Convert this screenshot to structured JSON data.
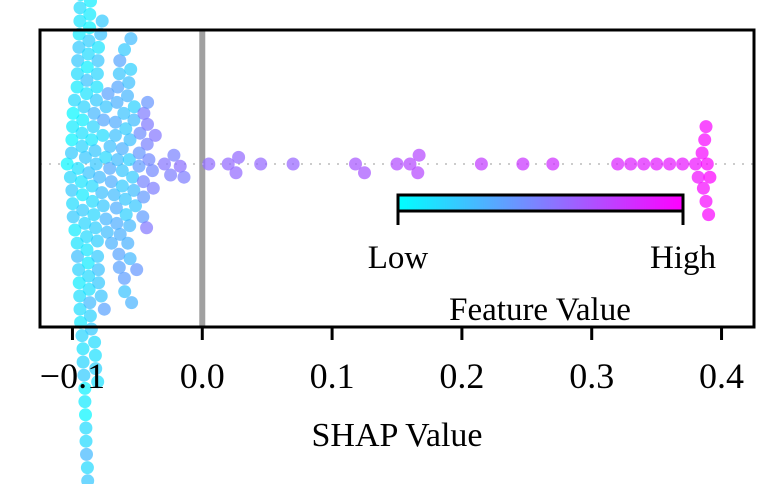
{
  "chart_data": {
    "type": "scatter",
    "subtype": "beeswarm",
    "title": "",
    "xlabel": "SHAP Value",
    "ylabel": "",
    "xlim": [
      -0.125,
      0.425
    ],
    "xticks": [
      -0.1,
      0.0,
      0.1,
      0.2,
      0.3,
      0.4
    ],
    "xtick_labels": [
      "−0.1",
      "0.0",
      "0.1",
      "0.2",
      "0.3",
      "0.4"
    ],
    "reference_line": {
      "x": 0.0,
      "color": "#a0a0a0"
    },
    "colormap": {
      "name": "cool",
      "low": "#00ffff",
      "high": "#ff00ff"
    },
    "colorbar": {
      "label": "Feature Value",
      "low_label": "Low",
      "high_label": "High"
    },
    "grid": false,
    "points": [
      {
        "x": 0.005,
        "f": 0.57
      },
      {
        "x": 0.02,
        "f": 0.58
      },
      {
        "x": 0.026,
        "f": 0.58
      },
      {
        "x": 0.028,
        "f": 0.58
      },
      {
        "x": 0.045,
        "f": 0.59
      },
      {
        "x": 0.07,
        "f": 0.6
      },
      {
        "x": 0.118,
        "f": 0.66
      },
      {
        "x": 0.125,
        "f": 0.66
      },
      {
        "x": 0.15,
        "f": 0.7
      },
      {
        "x": 0.16,
        "f": 0.71
      },
      {
        "x": 0.166,
        "f": 0.71
      },
      {
        "x": 0.167,
        "f": 0.71
      },
      {
        "x": 0.215,
        "f": 0.76
      },
      {
        "x": 0.247,
        "f": 0.79
      },
      {
        "x": 0.27,
        "f": 0.81
      },
      {
        "x": 0.32,
        "f": 0.86
      },
      {
        "x": 0.33,
        "f": 0.87
      },
      {
        "x": 0.34,
        "f": 0.88
      },
      {
        "x": 0.35,
        "f": 0.89
      },
      {
        "x": 0.36,
        "f": 0.9
      },
      {
        "x": 0.37,
        "f": 0.91
      },
      {
        "x": 0.38,
        "f": 0.93
      },
      {
        "x": 0.382,
        "f": 0.94
      },
      {
        "x": 0.385,
        "f": 0.96
      },
      {
        "x": 0.386,
        "f": 0.96
      },
      {
        "x": 0.387,
        "f": 0.97
      },
      {
        "x": 0.388,
        "f": 0.97
      },
      {
        "x": 0.389,
        "f": 0.98
      },
      {
        "x": 0.39,
        "f": 0.98
      },
      {
        "x": 0.391,
        "f": 0.99
      },
      {
        "x": 0.388,
        "f": 0.97
      }
    ]
  }
}
